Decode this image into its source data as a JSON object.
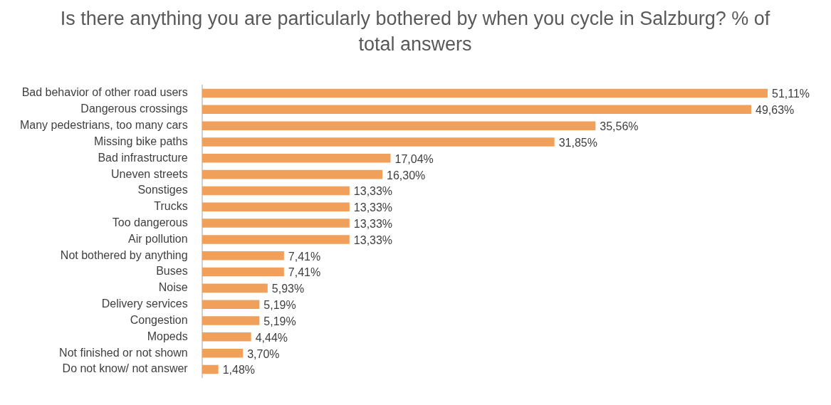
{
  "chart_data": {
    "type": "bar",
    "orientation": "horizontal",
    "title": "Is there anything you are particularly bothered by when you cycle in Salzburg? % of total answers",
    "categories": [
      "Bad behavior of other road users",
      "Dangerous crossings",
      "Many pedestrians, too many cars",
      "Missing bike paths",
      "Bad infrastructure",
      "Uneven streets",
      "Sonstiges",
      "Trucks",
      "Too dangerous",
      "Air pollution",
      "Not bothered by anything",
      "Buses",
      "Noise",
      "Delivery services",
      "Congestion",
      "Mopeds",
      "Not finished or not shown",
      "Do not know/ not answer"
    ],
    "values": [
      51.11,
      49.63,
      35.56,
      31.85,
      17.04,
      16.3,
      13.33,
      13.33,
      13.33,
      13.33,
      7.41,
      7.41,
      5.93,
      5.19,
      5.19,
      4.44,
      3.7,
      1.48
    ],
    "value_labels": [
      "51,11%",
      "49,63%",
      "35,56%",
      "31,85%",
      "17,04%",
      "16,30%",
      "13,33%",
      "13,33%",
      "13,33%",
      "13,33%",
      "7,41%",
      "7,41%",
      "5,93%",
      "5,19%",
      "5,19%",
      "4,44%",
      "3,70%",
      "1,48%"
    ],
    "color": "#f0a05a",
    "grid": false,
    "legend": false,
    "tick_labels": "y"
  }
}
